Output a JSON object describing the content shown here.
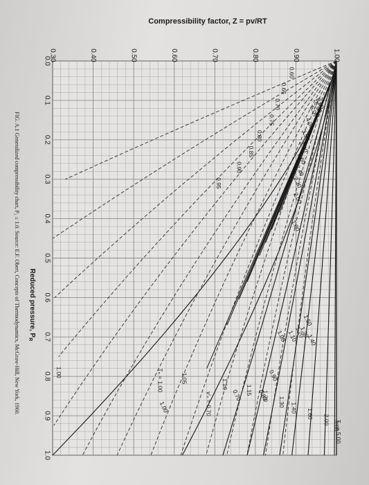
{
  "chart_data": {
    "type": "line",
    "title": "",
    "ylabel": "Compressibility factor, Z = pv/RT",
    "xlabel": "Reduced pressure, P",
    "xlabel_subscript": "R",
    "caption": "FIG. A.1 Generalized compressibility chart, P₂ ≤ 1.0. Source: E.F. Obert, Concepts of Thermodynamics, McGraw-Hill, New York, 1960.",
    "xlim": [
      0.0,
      1.0
    ],
    "ylim": [
      0.3,
      1.0
    ],
    "x_ticks": [
      "0.0",
      "0.1",
      "0.2",
      "0.3",
      "0.4",
      "0.5",
      "0.6",
      "0.7",
      "0.8",
      "0.9",
      "1.0"
    ],
    "y_ticks": [
      "0.30",
      "0.40",
      "0.50",
      "0.60",
      "0.70",
      "0.80",
      "0.90",
      "1.00"
    ],
    "grid": true,
    "orientation": "rotated-90",
    "series_kind": {
      "solid": "isotherms (reduced temperature)",
      "dashed": "isometrics (pseudo-reduced volume)"
    },
    "isotherms": [
      {
        "label": "Tₙ = 5.00",
        "tr": 5.0,
        "z_at_1": 1.0
      },
      {
        "label": "3.00",
        "tr": 3.0,
        "z_at_1": 0.995
      },
      {
        "label": "2.00",
        "tr": 2.0,
        "z_at_1": 0.97
      },
      {
        "label": "1.60",
        "tr": 1.6,
        "z_at_1": 0.93
      },
      {
        "label": "1.40",
        "tr": 1.4,
        "z_at_1": 0.89
      },
      {
        "label": "1.30",
        "tr": 1.3,
        "z_at_1": 0.86
      },
      {
        "label": "1.20",
        "tr": 1.2,
        "z_at_1": 0.82
      },
      {
        "label": "1.15",
        "tr": 1.15,
        "z_at_1": 0.78
      },
      {
        "label": "1.10",
        "tr": 1.1,
        "z_at_1": 0.72
      },
      {
        "label": "1.05",
        "tr": 1.05,
        "z_at_1": 0.62
      },
      {
        "label": "1.00",
        "tr": 1.0,
        "z_at_1": 0.3
      }
    ],
    "isotherm_annotations": [
      {
        "label": "1.50",
        "x": 0.66,
        "z": 0.925
      },
      {
        "label": "1.40",
        "x": 0.71,
        "z": 0.935
      },
      {
        "label": "1.30",
        "x": 0.69,
        "z": 0.917
      },
      {
        "label": "1.20",
        "x": 0.69,
        "z": 0.905
      },
      {
        "label": "1.10",
        "x": 0.7,
        "z": 0.887
      },
      {
        "label": "1.00",
        "x": 0.7,
        "z": 0.86
      },
      {
        "label": "0.90",
        "x": 0.8,
        "z": 0.84
      },
      {
        "label": "0.80",
        "x": 0.85,
        "z": 0.815
      },
      {
        "label": "0.70",
        "x": 0.85,
        "z": 0.75
      },
      {
        "label": "1.00",
        "x": 0.88,
        "z": 0.57
      }
    ],
    "isometrics": [
      {
        "label": "8.00",
        "x": 0.11,
        "z": 0.955
      },
      {
        "label": "6.00",
        "x": 0.12,
        "z": 0.95
      },
      {
        "label": "5.00",
        "x": 0.13,
        "z": 0.94
      },
      {
        "label": "4.00",
        "x": 0.16,
        "z": 0.93
      },
      {
        "label": "3.50",
        "x": 0.19,
        "z": 0.92
      },
      {
        "label": "3.00",
        "x": 0.22,
        "z": 0.915
      },
      {
        "label": "2.60",
        "x": 0.25,
        "z": 0.91
      },
      {
        "label": "2.40",
        "x": 0.28,
        "z": 0.905
      },
      {
        "label": "2.20",
        "x": 0.31,
        "z": 0.9
      },
      {
        "label": "2.00",
        "x": 0.35,
        "z": 0.9
      },
      {
        "label": "1.80",
        "x": 0.42,
        "z": 0.895
      }
    ],
    "low_tr_curves": [
      {
        "label": "0.60",
        "z_start": 0.88
      },
      {
        "label": "0.65",
        "z_start": 0.86
      },
      {
        "label": "0.70",
        "z_start": 0.845
      },
      {
        "label": "0.75",
        "z_start": 0.83
      },
      {
        "label": "0.80",
        "z_start": 0.8
      },
      {
        "label": "0.85",
        "z_start": 0.78
      },
      {
        "label": "0.90",
        "z_start": 0.75
      },
      {
        "label": "0.95",
        "z_start": 0.7
      }
    ],
    "critical_note": "v'ₙ = 0.70",
    "tr_note": "Tₙ = 1.00"
  }
}
